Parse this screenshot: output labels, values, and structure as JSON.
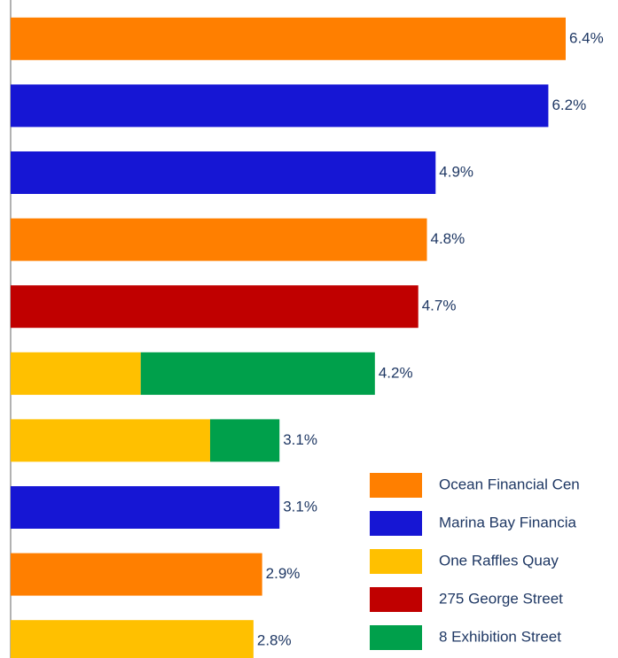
{
  "chart_data": {
    "type": "bar",
    "orientation": "horizontal",
    "stacked": true,
    "categories": [
      null,
      null,
      null,
      null,
      null,
      null,
      null,
      null,
      null,
      null
    ],
    "series": [
      {
        "name": "Ocean Financial Cen",
        "color": "#ff7f00",
        "values": [
          6.4,
          null,
          null,
          4.8,
          null,
          null,
          null,
          null,
          2.9,
          null
        ]
      },
      {
        "name": "Marina Bay Financia",
        "color": "#1616d4",
        "values": [
          null,
          6.2,
          4.9,
          null,
          null,
          null,
          null,
          3.1,
          null,
          null
        ]
      },
      {
        "name": "One Raffles Quay",
        "color": "#ffc000",
        "values": [
          null,
          null,
          null,
          null,
          null,
          1.5,
          2.3,
          null,
          null,
          2.8
        ]
      },
      {
        "name": "275 George Street",
        "color": "#c00000",
        "values": [
          null,
          null,
          null,
          null,
          4.7,
          null,
          null,
          null,
          null,
          null
        ]
      },
      {
        "name": "8 Exhibition Street",
        "color": "#00a04b",
        "values": [
          null,
          null,
          null,
          null,
          null,
          2.7,
          0.8,
          null,
          null,
          null
        ]
      }
    ],
    "totals": [
      6.4,
      6.2,
      4.9,
      4.8,
      4.7,
      4.2,
      3.1,
      3.1,
      2.9,
      2.8
    ],
    "value_labels": [
      "6.4%",
      "6.2%",
      "4.9%",
      "4.8%",
      "4.7%",
      "4.2%",
      "3.1%",
      "3.1%",
      "2.9%",
      "2.8%"
    ]
  }
}
